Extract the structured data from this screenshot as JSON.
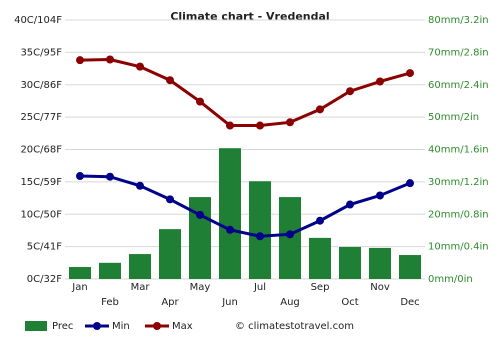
{
  "chart_data": {
    "type": "climate",
    "title": "Climate chart - Vredendal",
    "categories": [
      "Jan",
      "Feb",
      "Mar",
      "Apr",
      "May",
      "Jun",
      "Jul",
      "Aug",
      "Sep",
      "Oct",
      "Nov",
      "Dec"
    ],
    "series": [
      {
        "name": "Prec",
        "type": "bar",
        "axis": "y2",
        "color": "#1f7f35",
        "values": [
          3.7,
          5,
          7.7,
          15.4,
          25.3,
          40.4,
          30.2,
          25.3,
          12.7,
          9.9,
          9.6,
          7.4
        ]
      },
      {
        "name": "Min",
        "type": "line",
        "color": "#00008b",
        "values": [
          15.9,
          15.8,
          14.4,
          12.3,
          9.9,
          7.6,
          6.6,
          6.9,
          9.0,
          11.5,
          12.9,
          14.8
        ]
      },
      {
        "name": "Max",
        "type": "line",
        "color": "#8b0000",
        "values": [
          33.8,
          33.9,
          32.8,
          30.7,
          27.4,
          23.7,
          23.7,
          24.2,
          26.2,
          29.0,
          30.5,
          31.8
        ]
      }
    ],
    "ylim": [
      0,
      40
    ],
    "yticks": [
      {
        "value": 0,
        "label": "0C/32F"
      },
      {
        "value": 5,
        "label": "5C/41F"
      },
      {
        "value": 10,
        "label": "10C/50F"
      },
      {
        "value": 15,
        "label": "15C/59F"
      },
      {
        "value": 20,
        "label": "20C/68F"
      },
      {
        "value": 25,
        "label": "25C/77F"
      },
      {
        "value": 30,
        "label": "30C/86F"
      },
      {
        "value": 35,
        "label": "35C/95F"
      },
      {
        "value": 40,
        "label": "40C/104F"
      }
    ],
    "y2lim": [
      0,
      80
    ],
    "y2ticks": [
      {
        "value": 0,
        "label": "0mm/0in"
      },
      {
        "value": 10,
        "label": "10mm/0.4in"
      },
      {
        "value": 20,
        "label": "20mm/0.8in"
      },
      {
        "value": 30,
        "label": "30mm/1.2in"
      },
      {
        "value": 40,
        "label": "40mm/1.6in"
      },
      {
        "value": 50,
        "label": "50mm/2in"
      },
      {
        "value": 60,
        "label": "60mm/2.4in"
      },
      {
        "value": 70,
        "label": "70mm/2.8in"
      },
      {
        "value": 80,
        "label": "80mm/3.2in"
      }
    ],
    "grid": true,
    "watermark": "© climatestotravel.com"
  }
}
